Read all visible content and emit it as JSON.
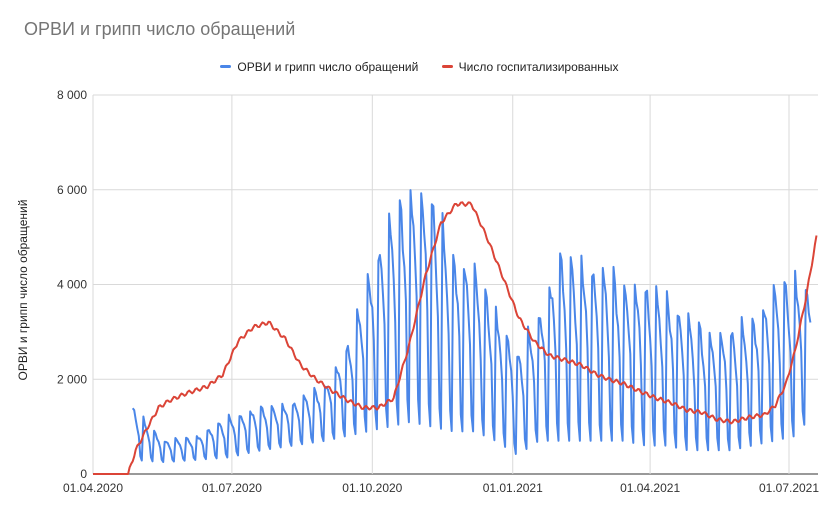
{
  "chart_data": {
    "type": "line",
    "title": "ОРВИ и грипп число обращений",
    "xlabel": "",
    "ylabel": "ОРВИ и грипп число обращений",
    "x_ticks": [
      "01.04.2020",
      "01.07.2020",
      "01.10.2020",
      "01.01.2021",
      "01.04.2021",
      "01.07.2021"
    ],
    "y_ticks": [
      "0",
      "2 000",
      "4 000",
      "6 000",
      "8 000"
    ],
    "ylim": [
      0,
      8000
    ],
    "xlim": [
      "2020-04-01",
      "2021-07-20"
    ],
    "grid": true,
    "legend_position": "top",
    "series": [
      {
        "name": "ОРВИ и грипп число обращений",
        "color": "#4a86e8",
        "x": [
          "2020-04-27",
          "2020-05-18",
          "2020-06-08",
          "2020-06-29",
          "2020-07-20",
          "2020-08-10",
          "2020-08-31",
          "2020-09-14",
          "2020-09-28",
          "2020-10-12",
          "2020-10-26",
          "2020-11-09",
          "2020-11-23",
          "2020-12-07",
          "2020-12-21",
          "2021-01-04",
          "2021-01-18",
          "2021-02-01",
          "2021-02-15",
          "2021-03-01",
          "2021-03-15",
          "2021-03-29",
          "2021-04-12",
          "2021-04-26",
          "2021-05-10",
          "2021-05-24",
          "2021-06-07",
          "2021-06-21",
          "2021-07-05",
          "2021-07-15"
        ],
        "weekday_high": [
          1400,
          700,
          800,
          1200,
          1400,
          1500,
          1900,
          2600,
          4200,
          5300,
          6100,
          5800,
          4700,
          4300,
          3500,
          2500,
          3400,
          4600,
          4500,
          4300,
          4100,
          3900,
          3800,
          3300,
          3000,
          3000,
          3300,
          3900,
          4200,
          3900
        ],
        "weekend_low": [
          300,
          250,
          300,
          350,
          500,
          600,
          700,
          800,
          900,
          1000,
          1100,
          1000,
          900,
          900,
          700,
          400,
          700,
          700,
          700,
          700,
          700,
          600,
          600,
          500,
          500,
          500,
          600,
          700,
          800,
          1200
        ]
      },
      {
        "name": "Число госпитализированных",
        "color": "#db4437",
        "x": [
          "2020-04-01",
          "2020-04-24",
          "2020-04-29",
          "2020-05-07",
          "2020-05-14",
          "2020-05-21",
          "2020-06-01",
          "2020-06-15",
          "2020-06-25",
          "2020-07-05",
          "2020-07-15",
          "2020-07-25",
          "2020-08-05",
          "2020-08-15",
          "2020-08-25",
          "2020-09-05",
          "2020-09-15",
          "2020-09-25",
          "2020-10-05",
          "2020-10-15",
          "2020-10-25",
          "2020-11-05",
          "2020-11-15",
          "2020-11-25",
          "2020-12-05",
          "2020-12-15",
          "2020-12-25",
          "2021-01-05",
          "2021-01-15",
          "2021-01-25",
          "2021-02-05",
          "2021-02-15",
          "2021-02-25",
          "2021-03-05",
          "2021-03-15",
          "2021-03-25",
          "2021-04-05",
          "2021-04-15",
          "2021-04-25",
          "2021-05-05",
          "2021-05-15",
          "2021-05-25",
          "2021-06-05",
          "2021-06-15",
          "2021-06-22",
          "2021-06-29",
          "2021-07-05",
          "2021-07-12",
          "2021-07-19"
        ],
        "values": [
          0,
          0,
          500,
          1000,
          1400,
          1550,
          1700,
          1850,
          2100,
          2800,
          3100,
          3200,
          2850,
          2300,
          2000,
          1750,
          1550,
          1400,
          1400,
          1600,
          2700,
          4200,
          5300,
          5700,
          5700,
          5000,
          4200,
          3300,
          2800,
          2500,
          2400,
          2300,
          2100,
          2000,
          1900,
          1750,
          1600,
          1500,
          1350,
          1300,
          1150,
          1100,
          1200,
          1250,
          1450,
          1900,
          2600,
          3700,
          5000
        ]
      }
    ]
  }
}
